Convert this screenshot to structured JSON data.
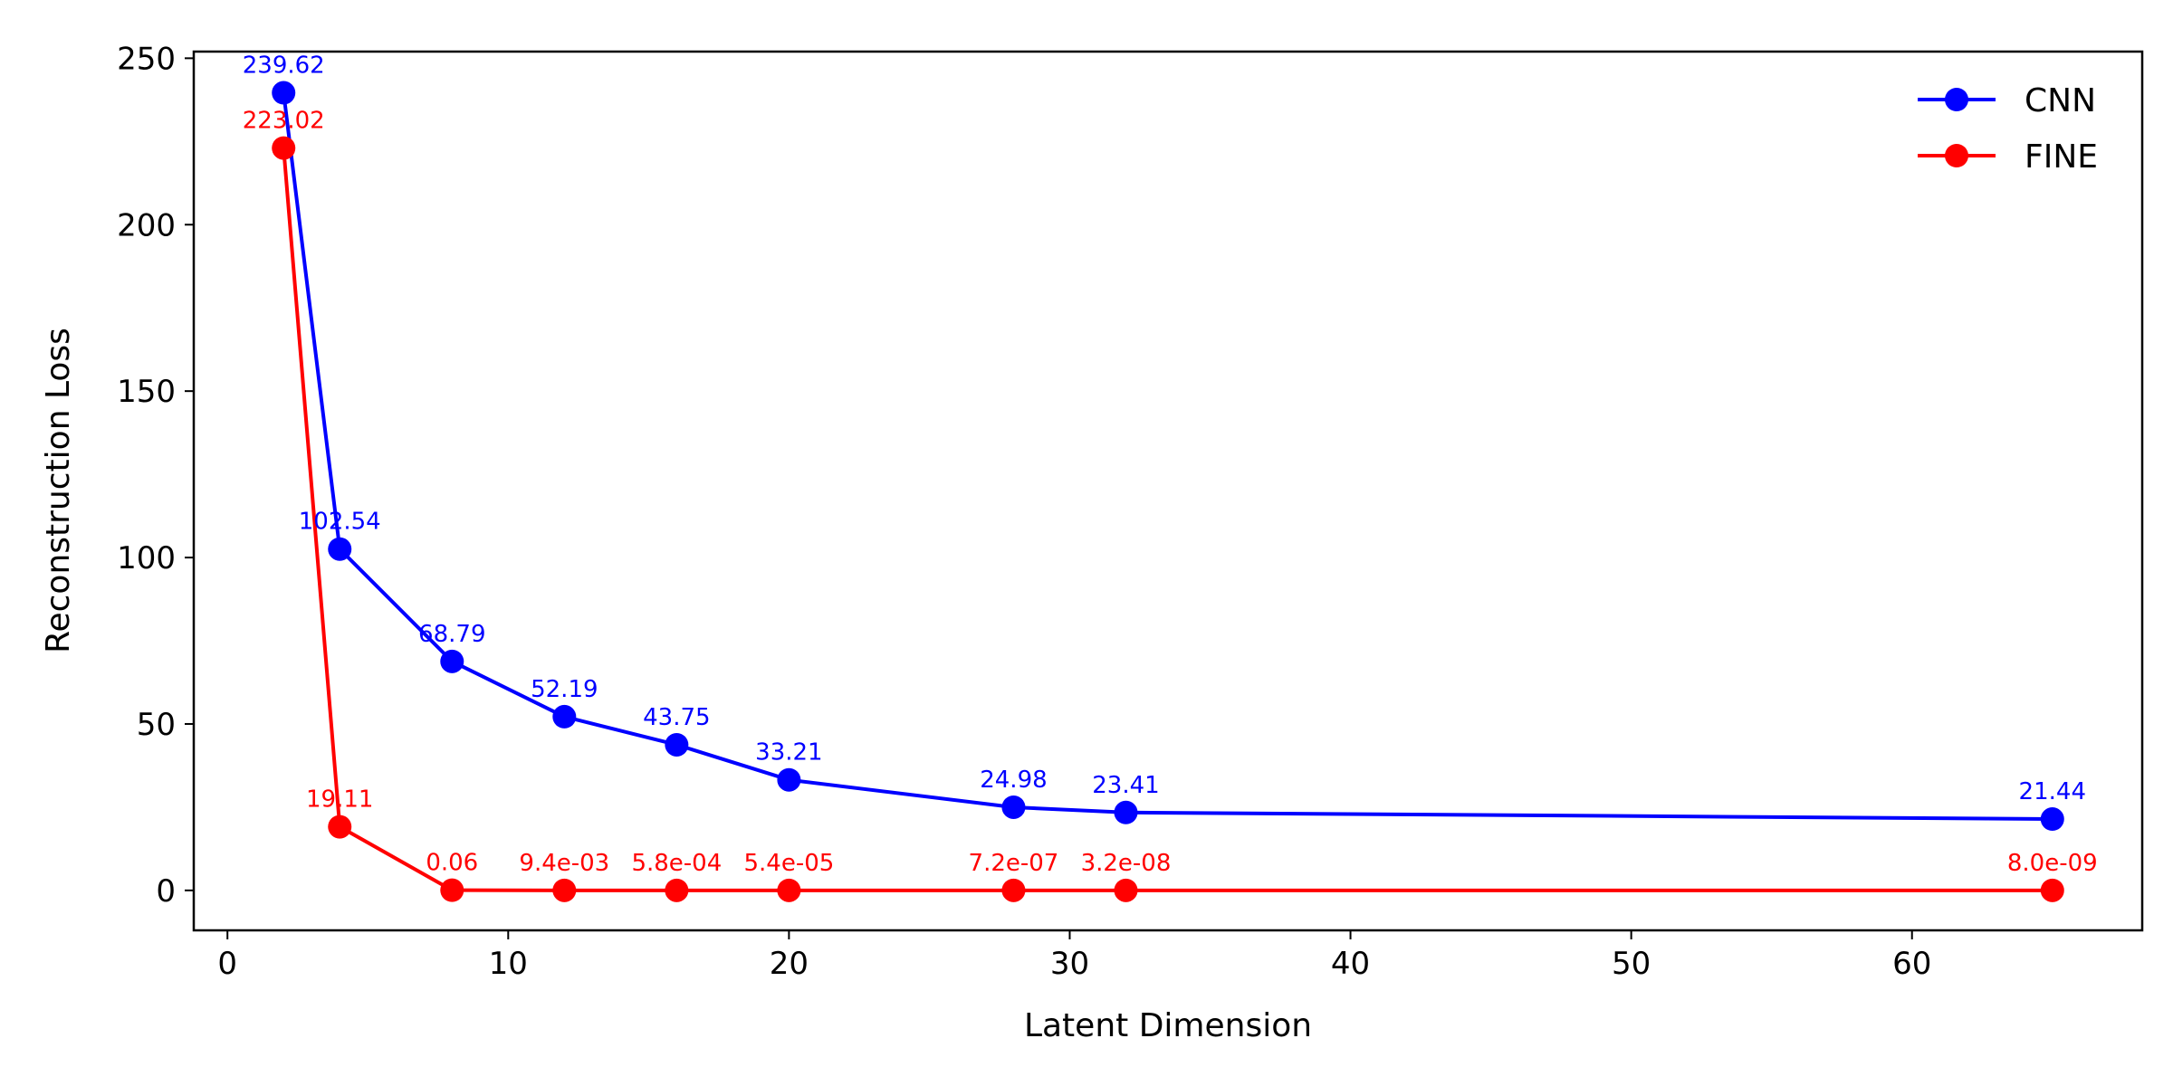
{
  "chart_data": {
    "type": "line",
    "title": "",
    "xlabel": "Latent Dimension",
    "ylabel": "Reconstruction Loss",
    "xlim": [
      -1.2,
      68.2
    ],
    "ylim": [
      -12,
      252
    ],
    "xticks": [
      0,
      10,
      20,
      30,
      40,
      50,
      60
    ],
    "yticks": [
      0,
      50,
      100,
      150,
      200,
      250
    ],
    "grid": false,
    "legend_position": "top-right",
    "x": [
      2,
      4,
      8,
      12,
      16,
      20,
      28,
      32,
      65
    ],
    "series": [
      {
        "name": "CNN",
        "color": "#0000ff",
        "marker": "circle",
        "values": [
          239.62,
          102.54,
          68.79,
          52.19,
          43.75,
          33.21,
          24.98,
          23.41,
          21.44
        ],
        "labels": [
          "239.62",
          "102.54",
          "68.79",
          "52.19",
          "43.75",
          "33.21",
          "24.98",
          "23.41",
          "21.44"
        ]
      },
      {
        "name": "FINE",
        "color": "#ff0000",
        "marker": "circle",
        "values": [
          223.02,
          19.11,
          0.06,
          0.0094,
          0.00058,
          5.4e-05,
          7.2e-07,
          3.2e-08,
          8e-09
        ],
        "labels": [
          "223.02",
          "19.11",
          "0.06",
          "9.4e-03",
          "5.8e-04",
          "5.4e-05",
          "7.2e-07",
          "3.2e-08",
          "8.0e-09"
        ]
      }
    ]
  }
}
